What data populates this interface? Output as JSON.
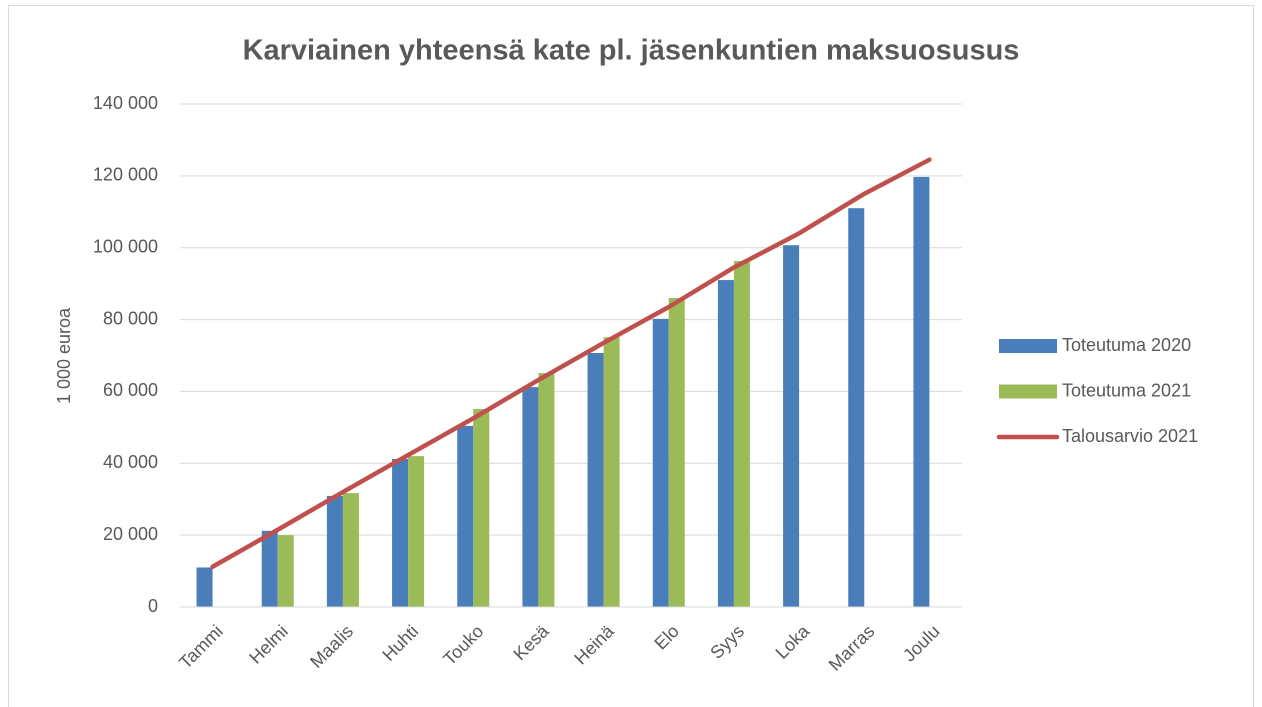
{
  "chart_data": {
    "type": "bar",
    "title": "Karviainen yhteensä kate pl. jäsenkuntien maksuosusus",
    "y_label": "1 000 euroa",
    "categories": [
      "Tammi",
      "Helmi",
      "Maalis",
      "Huhti",
      "Touko",
      "Kesä",
      "Heinä",
      "Elo",
      "Syys",
      "Loka",
      "Marras",
      "Joulu"
    ],
    "series": [
      {
        "name": "Toteutuma 2020",
        "color": "#4a7ebb",
        "values": [
          11000,
          21200,
          30900,
          41200,
          50400,
          61200,
          70700,
          80200,
          91000,
          100700,
          111000,
          119700
        ]
      },
      {
        "name": "Toteutuma 2021",
        "color": "#9bbb59",
        "values": [
          null,
          20000,
          31700,
          42000,
          55100,
          65100,
          75100,
          86000,
          96300,
          null,
          null,
          null
        ]
      },
      {
        "name": "Talousarvio 2021",
        "color": "#c0504d",
        "type": "line",
        "values": [
          11200,
          21500,
          32000,
          42300,
          52500,
          63200,
          73500,
          83500,
          94500,
          104000,
          115000,
          124500
        ]
      }
    ],
    "ylim": [
      0,
      140000
    ],
    "yticks": [
      {
        "value": 0,
        "label": "0"
      },
      {
        "value": 20000,
        "label": "20 000"
      },
      {
        "value": 40000,
        "label": "40 000"
      },
      {
        "value": 60000,
        "label": "60 000"
      },
      {
        "value": 80000,
        "label": "80 000"
      },
      {
        "value": 100000,
        "label": "100 000"
      },
      {
        "value": 120000,
        "label": "120 000"
      },
      {
        "value": 140000,
        "label": "140 000"
      }
    ],
    "grid": true,
    "legend": "right"
  }
}
